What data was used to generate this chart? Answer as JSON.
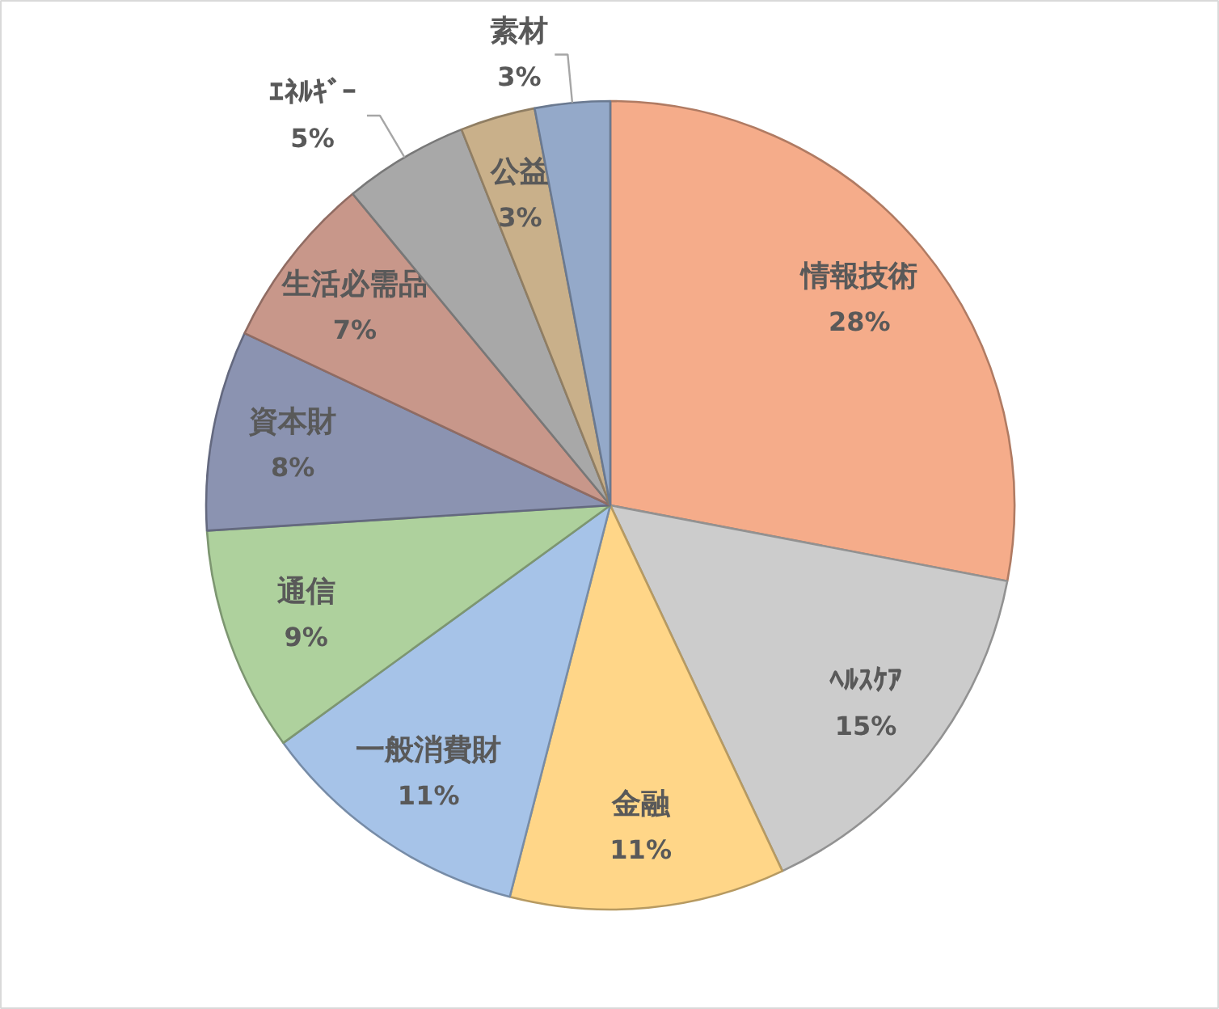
{
  "chart_data": {
    "type": "pie",
    "categories": [
      "情報技術",
      "ﾍﾙｽｹｱ",
      "金融",
      "一般消費財",
      "通信",
      "資本財",
      "生活必需品",
      "ｴﾈﾙｷﾞｰ",
      "公益",
      "素材"
    ],
    "values": [
      28,
      15,
      11,
      11,
      9,
      8,
      7,
      5,
      3,
      3
    ],
    "value_labels": [
      "28%",
      "15%",
      "11%",
      "11%",
      "9%",
      "8%",
      "7%",
      "5%",
      "3%",
      "3%"
    ],
    "colors": [
      "#f5ac8a",
      "#cccccc",
      "#ffd688",
      "#a6c3e8",
      "#aed19d",
      "#8b93b1",
      "#c8978a",
      "#a8a8a8",
      "#c9b08a",
      "#94a9c9"
    ]
  }
}
